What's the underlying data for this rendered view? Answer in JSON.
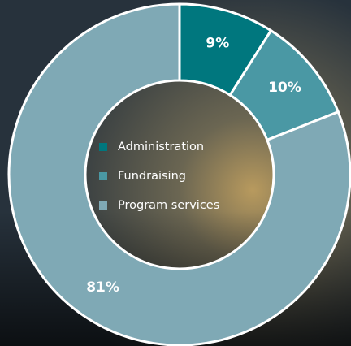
{
  "chart_data": {
    "type": "donut",
    "categories": [
      "Administration",
      "Fundraising",
      "Program services"
    ],
    "values": [
      9,
      10,
      81
    ],
    "value_labels": [
      "9%",
      "10%",
      "81%"
    ],
    "colors": [
      "#00777e",
      "#4a98a4",
      "#7fa9b5"
    ]
  }
}
